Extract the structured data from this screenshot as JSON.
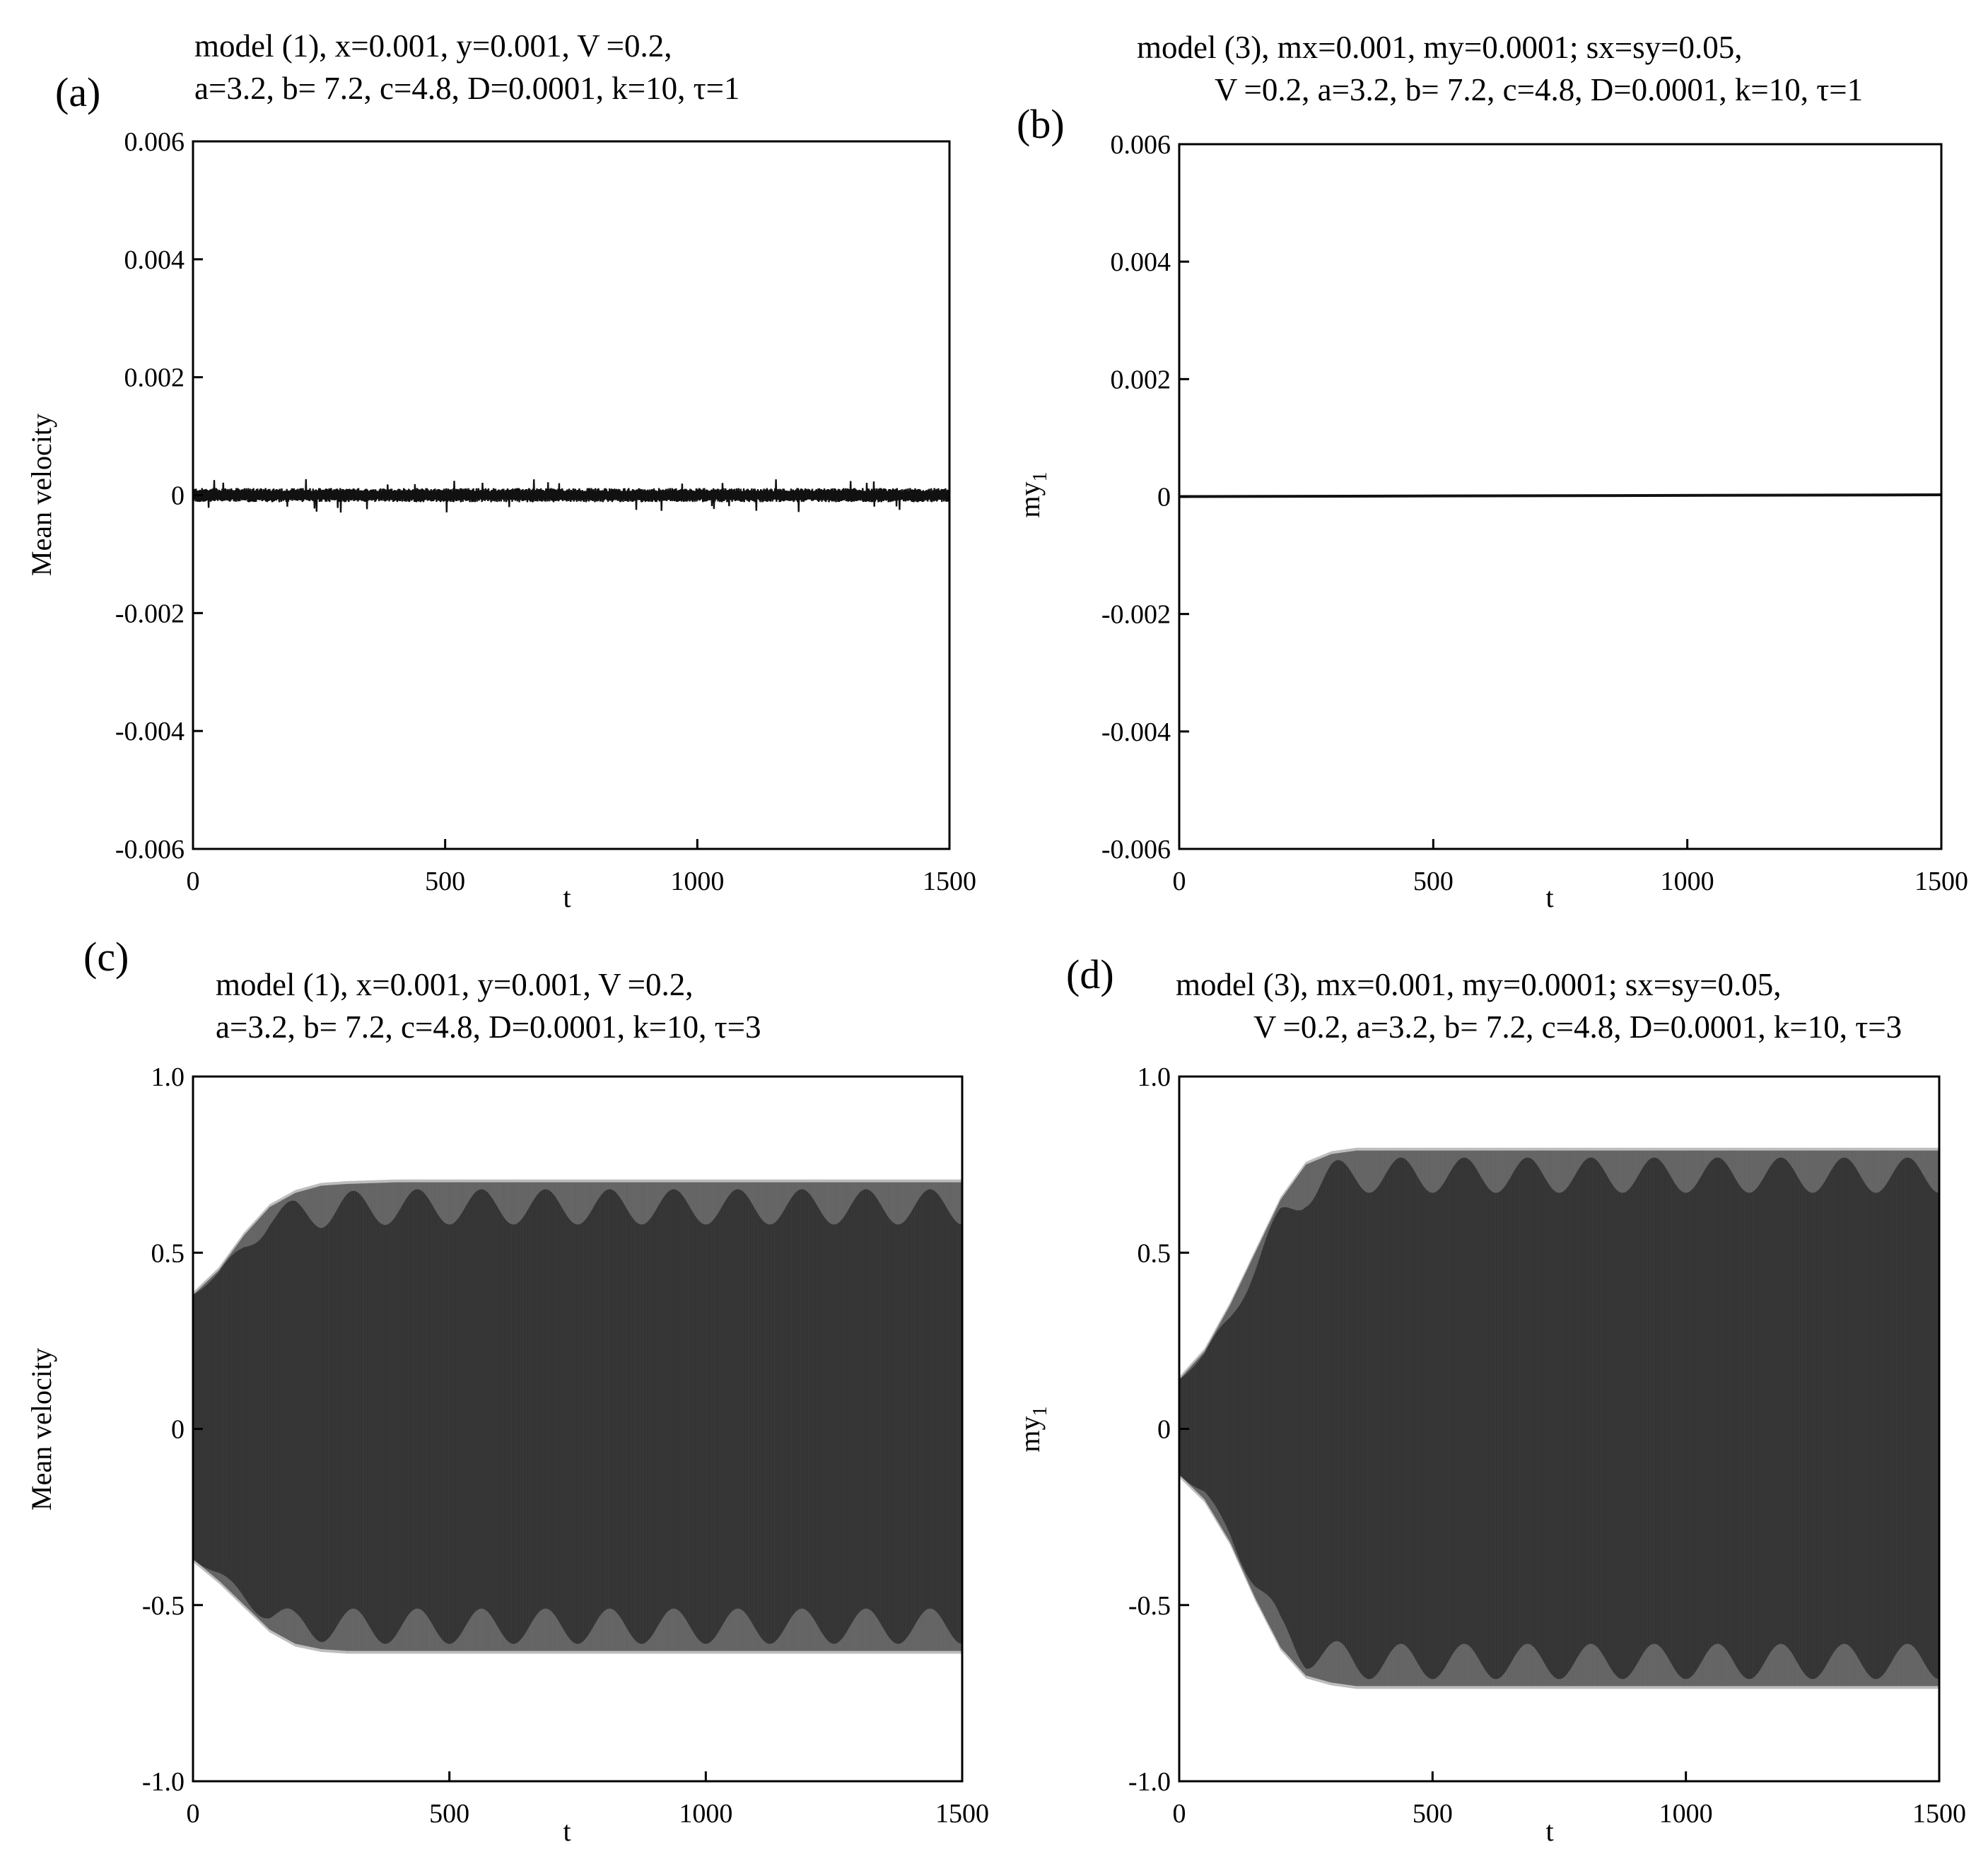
{
  "figure": {
    "chart_data": [
      {
        "id": "a",
        "panel_label": "(a)",
        "type": "line",
        "title_lines": [
          "model (1), x=0.001, y=0.001, V =0.2,",
          "a=3.2, b= 7.2, c=4.8, D=0.0001, k=10, τ=1"
        ],
        "xlabel": "t",
        "ylabel": "Mean velocity",
        "xlim": [
          0,
          1500
        ],
        "ylim": [
          -0.006,
          0.006
        ],
        "xticks": [
          0,
          500,
          1000,
          1500
        ],
        "xtick_labels": [
          "0",
          "500",
          "1000",
          "1500"
        ],
        "yticks": [
          -0.006,
          -0.004,
          -0.002,
          0,
          0.002,
          0.004,
          0.006
        ],
        "ytick_labels": [
          "-0.006",
          "-0.004",
          "-0.002",
          "0",
          "0.002",
          "0.004",
          "0.006"
        ],
        "grid": false,
        "series": [
          {
            "style": "noise",
            "x": [
              0,
              1500
            ],
            "center": [
              0,
              0
            ],
            "half_band": 0.00012,
            "peak": 0.0003
          }
        ]
      },
      {
        "id": "b",
        "panel_label": "(b)",
        "type": "line",
        "title_lines": [
          "model (3),  mx=0.001, my=0.0001; sx=sy=0.05,",
          "V =0.2, a=3.2, b= 7.2, c=4.8, D=0.0001, k=10, τ=1"
        ],
        "xlabel": "t",
        "ylabel": "my1",
        "ylabel_main": "my",
        "ylabel_sub": "1",
        "xlim": [
          0,
          1500
        ],
        "ylim": [
          -0.006,
          0.006
        ],
        "xticks": [
          0,
          500,
          1000,
          1500
        ],
        "xtick_labels": [
          "0",
          "500",
          "1000",
          "1500"
        ],
        "yticks": [
          -0.006,
          -0.004,
          -0.002,
          0,
          0.002,
          0.004,
          0.006
        ],
        "ytick_labels": [
          "-0.006",
          "-0.004",
          "-0.002",
          "0",
          "0.002",
          "0.004",
          "0.006"
        ],
        "grid": false,
        "series": [
          {
            "style": "line",
            "x": [
              0,
              1500
            ],
            "y": [
              0,
              3e-05
            ]
          }
        ]
      },
      {
        "id": "c",
        "panel_label": "(c)",
        "type": "line",
        "title_lines": [
          "model (1), x=0.001, y=0.001, V =0.2,",
          "a=3.2, b= 7.2, c=4.8, D=0.0001, k=10, τ=3"
        ],
        "xlabel": "t",
        "ylabel": "Mean velocity",
        "xlim": [
          0,
          1500
        ],
        "ylim": [
          -1.0,
          1.0
        ],
        "xticks": [
          0,
          500,
          1000,
          1500
        ],
        "xtick_labels": [
          "0",
          "500",
          "1000",
          "1500"
        ],
        "yticks": [
          -1.0,
          -0.5,
          0,
          0.5,
          1.0
        ],
        "ytick_labels": [
          "-1.0",
          "-0.5",
          "0",
          "0.5",
          "1.0"
        ],
        "grid": false,
        "series": [
          {
            "style": "oscillation",
            "upper_envelope": {
              "x": [
                0,
                50,
                100,
                150,
                200,
                250,
                300,
                400,
                1500
              ],
              "y": [
                0.38,
                0.45,
                0.55,
                0.63,
                0.67,
                0.69,
                0.695,
                0.7,
                0.7
              ]
            },
            "lower_envelope": {
              "x": [
                0,
                50,
                100,
                150,
                200,
                250,
                300,
                400,
                1500
              ],
              "y": [
                -0.37,
                -0.43,
                -0.5,
                -0.57,
                -0.61,
                -0.625,
                -0.63,
                -0.63,
                -0.63
              ]
            },
            "beat_period": 125,
            "beat_depth": 0.1
          }
        ]
      },
      {
        "id": "d",
        "panel_label": "(d)",
        "type": "line",
        "title_lines": [
          "model (3),  mx=0.001, my=0.0001; sx=sy=0.05,",
          "V =0.2, a=3.2, b= 7.2, c=4.8, D=0.0001, k=10, τ=3"
        ],
        "xlabel": "t",
        "ylabel": "my1",
        "ylabel_main": "my",
        "ylabel_sub": "1",
        "xlim": [
          0,
          1500
        ],
        "ylim": [
          -1.0,
          1.0
        ],
        "xticks": [
          0,
          500,
          1000,
          1500
        ],
        "xtick_labels": [
          "0",
          "500",
          "1000",
          "1500"
        ],
        "yticks": [
          -1.0,
          -0.5,
          0,
          0.5,
          1.0
        ],
        "ytick_labels": [
          "-1.0",
          "-0.5",
          "0",
          "0.5",
          "1.0"
        ],
        "grid": false,
        "series": [
          {
            "style": "oscillation",
            "upper_envelope": {
              "x": [
                0,
                50,
                100,
                150,
                200,
                250,
                300,
                350,
                1500
              ],
              "y": [
                0.14,
                0.22,
                0.35,
                0.5,
                0.65,
                0.75,
                0.78,
                0.79,
                0.79
              ]
            },
            "lower_envelope": {
              "x": [
                0,
                50,
                100,
                150,
                200,
                250,
                300,
                350,
                1500
              ],
              "y": [
                -0.13,
                -0.2,
                -0.32,
                -0.48,
                -0.62,
                -0.7,
                -0.72,
                -0.73,
                -0.73
              ]
            },
            "beat_period": 125,
            "beat_depth": 0.1
          }
        ]
      }
    ]
  }
}
